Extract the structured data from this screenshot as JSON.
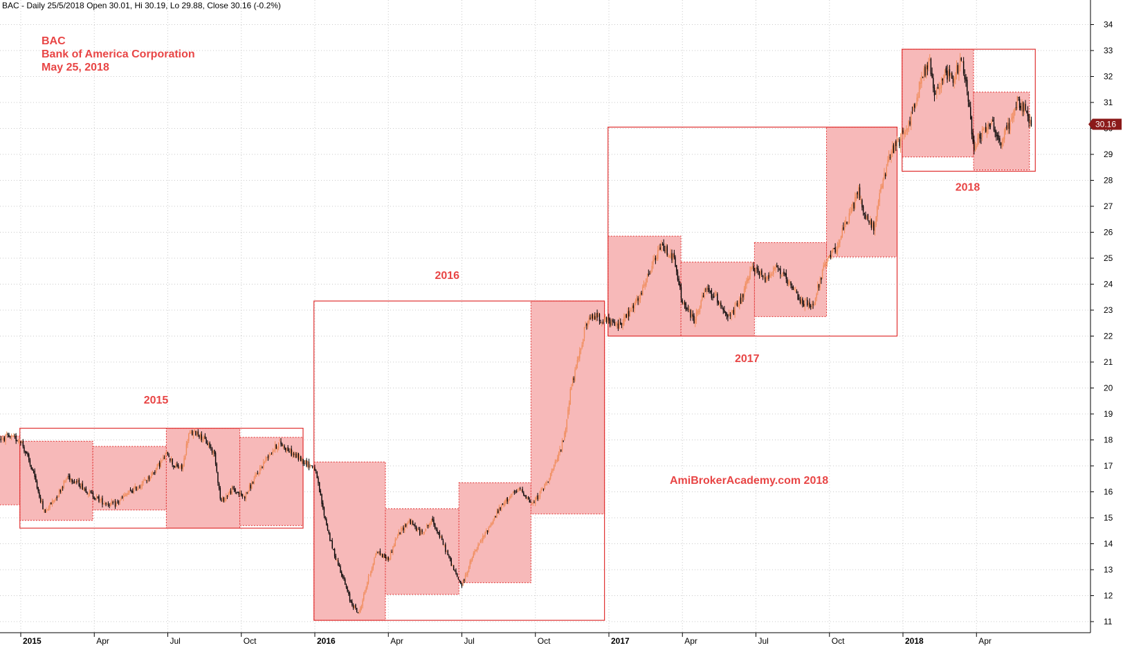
{
  "header": "BAC - Daily 25/5/2018 Open 30.01, Hi 30.19, Lo 29.88, Close 30.16 (-0.2%)",
  "annotation": {
    "ticker": "BAC",
    "company": "Bank of America Corporation",
    "date": "May 25, 2018"
  },
  "watermark": "AmiBrokerAcademy.com   2018",
  "last_price_label": "30.16",
  "colors": {
    "accent": "#e84545",
    "box_fill": "#f7b9b9",
    "box_stroke": "#e03030",
    "grid": "#c8c8c8",
    "candle_up": "#f08c5a",
    "candle_down": "#000000",
    "price_tag": "#8b1a1a"
  },
  "chart_data": {
    "type": "candlestick",
    "y_axis": {
      "ticks": [
        11,
        12,
        13,
        14,
        15,
        16,
        17,
        18,
        19,
        20,
        21,
        22,
        23,
        24,
        25,
        26,
        27,
        28,
        29,
        30,
        31,
        32,
        33,
        34
      ],
      "ylim": [
        10.65,
        34.3
      ]
    },
    "x_axis": {
      "ticks": [
        "2015",
        "Apr",
        "Jul",
        "Oct",
        "2016",
        "Apr",
        "Jul",
        "Oct",
        "2017",
        "Apr",
        "Jul",
        "Oct",
        "2018",
        "Apr"
      ],
      "xlim": [
        2014.73,
        2018.55
      ],
      "tick_positions": [
        2015.0,
        2015.25,
        2015.5,
        2015.75,
        2016.0,
        2016.25,
        2016.5,
        2016.75,
        2017.0,
        2017.25,
        2017.5,
        2017.75,
        2018.0,
        2018.25
      ]
    },
    "year_ranges": [
      {
        "label": "2015",
        "start": 2014.997,
        "end": 2015.96,
        "low": 14.6,
        "high": 18.45
      },
      {
        "label": "2016",
        "start": 2015.997,
        "end": 2016.985,
        "low": 11.05,
        "high": 23.35
      },
      {
        "label": "2017",
        "start": 2016.997,
        "end": 2017.98,
        "low": 22.0,
        "high": 30.05
      },
      {
        "label": "2018",
        "start": 2017.997,
        "end": 2018.45,
        "low": 28.35,
        "high": 33.05
      }
    ],
    "year_labels": [
      {
        "text": "2015",
        "x": 2015.46,
        "y": 19.4
      },
      {
        "text": "2016",
        "x": 2016.45,
        "y": 24.2
      },
      {
        "text": "2017",
        "x": 2017.47,
        "y": 21.0
      },
      {
        "text": "2018",
        "x": 2018.22,
        "y": 27.6
      }
    ],
    "quarter_ranges": [
      {
        "start": 2014.73,
        "end": 2014.997,
        "low": 15.5,
        "high": 18.15
      },
      {
        "start": 2014.997,
        "end": 2015.245,
        "low": 14.9,
        "high": 17.95
      },
      {
        "start": 2015.245,
        "end": 2015.495,
        "low": 15.3,
        "high": 17.75
      },
      {
        "start": 2015.495,
        "end": 2015.745,
        "low": 14.6,
        "high": 18.45
      },
      {
        "start": 2015.745,
        "end": 2015.96,
        "low": 14.7,
        "high": 18.1
      },
      {
        "start": 2015.997,
        "end": 2016.24,
        "low": 11.05,
        "high": 17.15
      },
      {
        "start": 2016.24,
        "end": 2016.49,
        "low": 12.05,
        "high": 15.35
      },
      {
        "start": 2016.49,
        "end": 2016.735,
        "low": 12.5,
        "high": 16.35
      },
      {
        "start": 2016.735,
        "end": 2016.985,
        "low": 15.15,
        "high": 23.35
      },
      {
        "start": 2016.997,
        "end": 2017.245,
        "low": 22.0,
        "high": 25.85
      },
      {
        "start": 2017.245,
        "end": 2017.495,
        "low": 22.0,
        "high": 24.85
      },
      {
        "start": 2017.495,
        "end": 2017.74,
        "low": 22.75,
        "high": 25.6
      },
      {
        "start": 2017.74,
        "end": 2017.98,
        "low": 25.05,
        "high": 30.05
      },
      {
        "start": 2017.997,
        "end": 2018.24,
        "low": 28.9,
        "high": 33.05
      },
      {
        "start": 2018.24,
        "end": 2018.43,
        "low": 28.4,
        "high": 31.4
      }
    ],
    "price_path": [
      [
        2014.73,
        17.3
      ],
      [
        2014.76,
        16.8
      ],
      [
        2014.8,
        17.6
      ],
      [
        2014.85,
        17.9
      ],
      [
        2014.9,
        18.0
      ],
      [
        2014.95,
        18.1
      ],
      [
        2015.0,
        18.0
      ],
      [
        2015.04,
        16.8
      ],
      [
        2015.08,
        15.2
      ],
      [
        2015.12,
        15.8
      ],
      [
        2015.16,
        16.6
      ],
      [
        2015.2,
        16.3
      ],
      [
        2015.24,
        15.9
      ],
      [
        2015.28,
        15.6
      ],
      [
        2015.32,
        15.5
      ],
      [
        2015.36,
        15.9
      ],
      [
        2015.4,
        16.2
      ],
      [
        2015.44,
        16.6
      ],
      [
        2015.48,
        17.2
      ],
      [
        2015.5,
        17.5
      ],
      [
        2015.52,
        17.0
      ],
      [
        2015.55,
        16.9
      ],
      [
        2015.57,
        18.2
      ],
      [
        2015.6,
        18.3
      ],
      [
        2015.64,
        17.8
      ],
      [
        2015.66,
        17.4
      ],
      [
        2015.68,
        15.6
      ],
      [
        2015.72,
        16.1
      ],
      [
        2015.76,
        15.8
      ],
      [
        2015.8,
        16.6
      ],
      [
        2015.84,
        17.4
      ],
      [
        2015.88,
        17.9
      ],
      [
        2015.92,
        17.5
      ],
      [
        2015.96,
        17.2
      ],
      [
        2016.0,
        16.9
      ],
      [
        2016.03,
        15.2
      ],
      [
        2016.06,
        13.8
      ],
      [
        2016.09,
        12.9
      ],
      [
        2016.12,
        11.8
      ],
      [
        2016.15,
        11.3
      ],
      [
        2016.18,
        12.6
      ],
      [
        2016.21,
        13.7
      ],
      [
        2016.25,
        13.4
      ],
      [
        2016.28,
        14.3
      ],
      [
        2016.32,
        14.9
      ],
      [
        2016.36,
        14.4
      ],
      [
        2016.4,
        14.9
      ],
      [
        2016.44,
        13.9
      ],
      [
        2016.48,
        12.8
      ],
      [
        2016.5,
        12.4
      ],
      [
        2016.54,
        13.6
      ],
      [
        2016.58,
        14.4
      ],
      [
        2016.62,
        15.2
      ],
      [
        2016.66,
        15.8
      ],
      [
        2016.7,
        16.1
      ],
      [
        2016.74,
        15.5
      ],
      [
        2016.78,
        16.2
      ],
      [
        2016.82,
        17.1
      ],
      [
        2016.85,
        18.2
      ],
      [
        2016.87,
        20.0
      ],
      [
        2016.89,
        20.8
      ],
      [
        2016.92,
        22.4
      ],
      [
        2016.95,
        22.8
      ],
      [
        2016.985,
        22.6
      ],
      [
        2017.03,
        22.4
      ],
      [
        2017.07,
        22.9
      ],
      [
        2017.11,
        23.6
      ],
      [
        2017.15,
        24.8
      ],
      [
        2017.18,
        25.5
      ],
      [
        2017.22,
        25.0
      ],
      [
        2017.25,
        23.3
      ],
      [
        2017.29,
        22.6
      ],
      [
        2017.33,
        23.8
      ],
      [
        2017.37,
        23.4
      ],
      [
        2017.41,
        22.7
      ],
      [
        2017.45,
        23.4
      ],
      [
        2017.49,
        24.7
      ],
      [
        2017.53,
        24.2
      ],
      [
        2017.57,
        24.7
      ],
      [
        2017.61,
        24.0
      ],
      [
        2017.65,
        23.4
      ],
      [
        2017.69,
        23.1
      ],
      [
        2017.73,
        24.6
      ],
      [
        2017.77,
        25.4
      ],
      [
        2017.81,
        26.4
      ],
      [
        2017.85,
        27.6
      ],
      [
        2017.87,
        26.6
      ],
      [
        2017.9,
        26.2
      ],
      [
        2017.93,
        27.9
      ],
      [
        2017.96,
        29.1
      ],
      [
        2018.0,
        29.7
      ],
      [
        2018.03,
        30.5
      ],
      [
        2018.06,
        31.8
      ],
      [
        2018.09,
        32.6
      ],
      [
        2018.11,
        31.2
      ],
      [
        2018.14,
        32.2
      ],
      [
        2018.17,
        31.9
      ],
      [
        2018.2,
        32.6
      ],
      [
        2018.22,
        31.4
      ],
      [
        2018.24,
        29.3
      ],
      [
        2018.27,
        29.9
      ],
      [
        2018.3,
        30.3
      ],
      [
        2018.33,
        29.4
      ],
      [
        2018.36,
        30.1
      ],
      [
        2018.39,
        31.1
      ],
      [
        2018.42,
        30.6
      ],
      [
        2018.44,
        30.16
      ]
    ]
  }
}
